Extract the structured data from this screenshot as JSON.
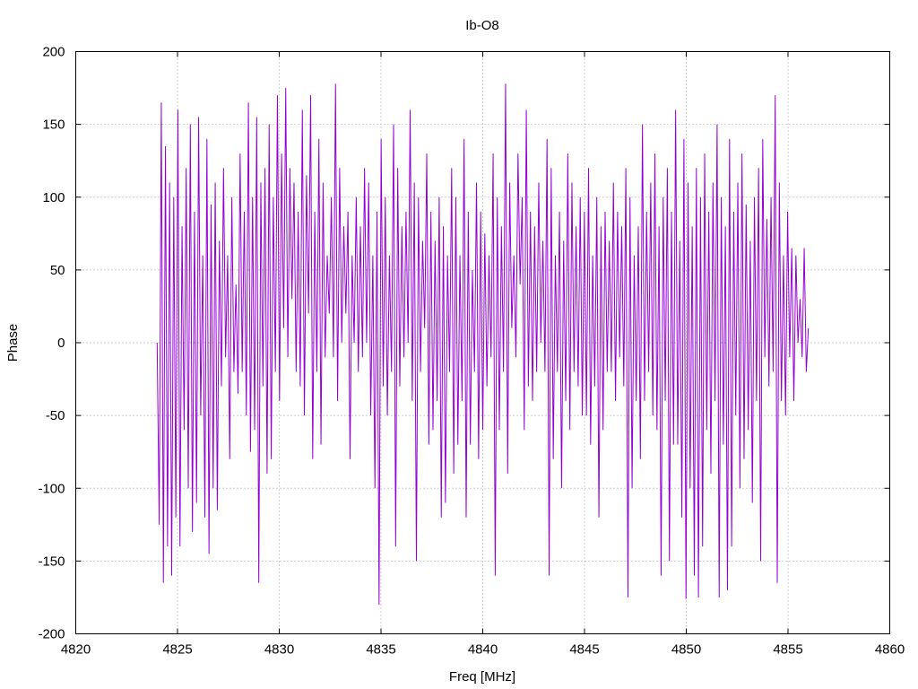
{
  "chart_data": {
    "type": "line",
    "title": "Ib-O8",
    "xlabel": "Freq [MHz]",
    "ylabel": "Phase",
    "xlim": [
      4820,
      4860
    ],
    "ylim": [
      -200,
      200
    ],
    "x_ticks": [
      4820,
      4825,
      4830,
      4835,
      4840,
      4845,
      4850,
      4855,
      4860
    ],
    "y_ticks": [
      -200,
      -150,
      -100,
      -50,
      0,
      50,
      100,
      150,
      200
    ],
    "grid": true,
    "series": [
      {
        "color": "#9400d3",
        "x_start": 4824.0,
        "x_end": 4856.0,
        "values": [
          0,
          -125,
          165,
          -165,
          135,
          -140,
          110,
          -160,
          100,
          -120,
          160,
          -140,
          80,
          -60,
          120,
          -100,
          150,
          -130,
          90,
          -110,
          155,
          -50,
          60,
          -120,
          140,
          -145,
          95,
          -100,
          110,
          -115,
          70,
          -30,
          120,
          -10,
          60,
          -80,
          100,
          -20,
          40,
          -35,
          130,
          -20,
          90,
          -50,
          165,
          -75,
          100,
          -60,
          155,
          -165,
          110,
          -30,
          120,
          -90,
          150,
          -80,
          100,
          -20,
          170,
          -40,
          130,
          10,
          175,
          -10,
          120,
          30,
          110,
          -20,
          90,
          -30,
          160,
          -50,
          115,
          20,
          170,
          -80,
          90,
          -20,
          140,
          -70,
          110,
          -10,
          60,
          20,
          100,
          -10,
          178,
          -40,
          120,
          0,
          80,
          20,
          90,
          -80,
          60,
          0,
          100,
          -20,
          80,
          -10,
          120,
          0,
          110,
          -50,
          60,
          -100,
          90,
          -180,
          140,
          -30,
          100,
          -50,
          60,
          -20,
          150,
          -140,
          120,
          -30,
          80,
          -10,
          90,
          0,
          160,
          -40,
          110,
          -150,
          100,
          -20,
          70,
          10,
          130,
          -70,
          90,
          -60,
          70,
          -40,
          100,
          -120,
          80,
          -110,
          60,
          -20,
          120,
          -90,
          100,
          -70,
          60,
          -40,
          140,
          -120,
          90,
          -70,
          50,
          -20,
          110,
          -80,
          90,
          -60,
          75,
          -30,
          60,
          -10,
          130,
          -160,
          100,
          -60,
          80,
          -20,
          178,
          -90,
          110,
          10,
          60,
          -10,
          130,
          40,
          100,
          -60,
          160,
          -30,
          90,
          -40,
          80,
          -20,
          110,
          0,
          70,
          -20,
          140,
          -160,
          120,
          -80,
          60,
          -20,
          90,
          -100,
          70,
          -40,
          130,
          -60,
          110,
          -20,
          80,
          -30,
          100,
          -50,
          90,
          -50,
          120,
          -70,
          60,
          -30,
          100,
          -120,
          80,
          -60,
          90,
          -20,
          70,
          -20,
          110,
          -40,
          90,
          -10,
          80,
          -30,
          120,
          -175,
          100,
          -100,
          60,
          -40,
          80,
          -80,
          150,
          -40,
          90,
          -20,
          110,
          -50,
          130,
          -60,
          80,
          -160,
          100,
          -40,
          120,
          -150,
          90,
          -70,
          160,
          -70,
          70,
          -120,
          140,
          -176,
          110,
          -100,
          80,
          -160,
          120,
          -175,
          100,
          -140,
          130,
          -60,
          90,
          -90,
          110,
          -40,
          150,
          -175,
          100,
          -70,
          80,
          -170,
          140,
          -140,
          90,
          -50,
          110,
          -100,
          130,
          -80,
          95,
          -60,
          70,
          -110,
          100,
          -40,
          120,
          -150,
          140,
          -10,
          85,
          -30,
          100,
          -20,
          170,
          -165,
          110,
          -40,
          60,
          -50,
          90,
          -10,
          65,
          -40,
          60,
          0,
          30,
          -10,
          65,
          -20,
          10
        ]
      }
    ]
  }
}
